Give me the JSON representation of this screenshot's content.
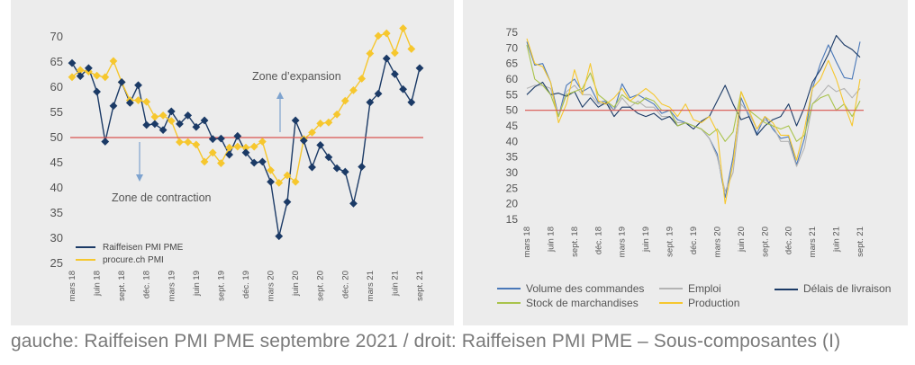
{
  "caption": "gauche: Raiffeisen PMI PME septembre 2021 / droit: Raiffeisen PMI PME – Sous-composantes (I)",
  "chart_data": [
    {
      "type": "line",
      "ylim": [
        25,
        70
      ],
      "yticks": [
        25,
        30,
        35,
        40,
        45,
        50,
        55,
        60,
        65,
        70
      ],
      "xtick_labels": [
        "mars 18",
        "juin 18",
        "sept. 18",
        "déc. 18",
        "mars 19",
        "juin 19",
        "sept. 19",
        "déc. 19",
        "mars 20",
        "juin 20",
        "sept. 20",
        "déc. 20",
        "mars 21",
        "juin 21",
        "sept. 21"
      ],
      "reference_line": 50,
      "annotations": {
        "expansion": "Zone d’expansion",
        "contraction": "Zone de contraction"
      },
      "series": [
        {
          "name": "Raiffeisen PMI PME",
          "color": "#1b3a66",
          "marker": "diamond",
          "values": [
            64.8,
            62.2,
            63.8,
            59.1,
            49.2,
            56.3,
            61.0,
            56.9,
            60.4,
            52.5,
            52.7,
            51.5,
            55.2,
            52.7,
            54.4,
            52.1,
            53.4,
            49.7,
            49.8,
            46.6,
            50.3,
            47.0,
            45.0,
            45.2,
            41.2,
            30.4,
            37.2,
            53.4,
            49.4,
            44.1,
            48.5,
            46.1,
            43.9,
            43.2,
            36.9,
            44.2,
            57.0,
            58.7,
            65.7,
            62.6,
            59.6,
            57.0,
            63.8
          ]
        },
        {
          "name": "procure.ch PMI",
          "color": "#f6c72e",
          "marker": "diamond",
          "values": [
            62.0,
            63.4,
            63.1,
            62.3,
            62.0,
            65.2,
            61.0,
            57.4,
            57.4,
            57.1,
            54.1,
            54.4,
            53.3,
            49.1,
            49.1,
            48.6,
            45.2,
            47.0,
            44.9,
            48.0,
            48.2,
            48.0,
            48.2,
            49.2,
            43.5,
            41.0,
            42.5,
            41.2,
            49.7,
            51.0,
            52.8,
            53.0,
            54.6,
            57.3,
            59.4,
            61.7,
            66.7,
            70.2,
            70.7,
            66.8,
            71.7,
            67.6
          ]
        }
      ]
    },
    {
      "type": "line",
      "ylim": [
        15,
        75
      ],
      "yticks": [
        15,
        20,
        25,
        30,
        35,
        40,
        45,
        50,
        55,
        60,
        65,
        70,
        75
      ],
      "xtick_labels": [
        "mars 18",
        "juin 18",
        "sept. 18",
        "déc. 18",
        "mars 19",
        "juin 19",
        "sept. 19",
        "déc. 19",
        "mars 20",
        "juin 20",
        "sept. 20",
        "déc. 20",
        "mars 21",
        "juin 21",
        "sept. 21"
      ],
      "reference_line": 50,
      "series": [
        {
          "name": "Volume des commandes",
          "color": "#4a78b8",
          "values": [
            72,
            64.5,
            65,
            59,
            48,
            58,
            60,
            56,
            57.5,
            52.5,
            53,
            50,
            58.5,
            54,
            55,
            53.5,
            52,
            49,
            50,
            47,
            46,
            45,
            44,
            41,
            36,
            22,
            35,
            54,
            48,
            42.5,
            48,
            44,
            41,
            41.5,
            32.5,
            41,
            57,
            65,
            71,
            65.5,
            60.5,
            60,
            72
          ]
        },
        {
          "name": "Emploi",
          "color": "#b3b3b3",
          "values": [
            57,
            58,
            58,
            57,
            48,
            56,
            58,
            55,
            55,
            52,
            52,
            50,
            54,
            51,
            53,
            51,
            51,
            48,
            48,
            46,
            46,
            45,
            44,
            41,
            35,
            24,
            30,
            52,
            49,
            44,
            47,
            45,
            40,
            40,
            32,
            38,
            52,
            55,
            58,
            56,
            57,
            54,
            57
          ]
        },
        {
          "name": "Délais de livraison",
          "color": "#1b3a66",
          "values": [
            55,
            57.5,
            59,
            55,
            55.5,
            54.5,
            56,
            51,
            54,
            51,
            52.5,
            48,
            51,
            51,
            49,
            48,
            49,
            47,
            48,
            45,
            46,
            44,
            46.5,
            48,
            53,
            58,
            52,
            47,
            48,
            42,
            45,
            47,
            48,
            52,
            45,
            51,
            59,
            63,
            68,
            74,
            71,
            69.5,
            67
          ]
        },
        {
          "name": "Stock de marchandises",
          "color": "#a9c34b",
          "values": [
            71,
            60,
            58,
            55,
            48,
            55,
            56,
            57,
            62,
            55,
            53,
            51,
            55,
            53,
            52,
            54,
            53,
            50,
            50,
            45,
            46,
            45,
            44,
            42,
            44,
            40,
            43,
            56,
            50,
            48,
            46,
            45,
            44,
            45,
            40,
            42,
            52,
            54,
            55,
            50,
            52,
            48,
            53
          ]
        },
        {
          "name": "Production",
          "color": "#f6c72e",
          "values": [
            73,
            65,
            64,
            59,
            46,
            52,
            63,
            55,
            65,
            53,
            52,
            54,
            57,
            53,
            55,
            57,
            55,
            52,
            51,
            48,
            52,
            47,
            46,
            48,
            43,
            20,
            33,
            56,
            50,
            44,
            48,
            46,
            42,
            42,
            34,
            44,
            57,
            60,
            66,
            60,
            52,
            45,
            60
          ]
        }
      ]
    }
  ]
}
